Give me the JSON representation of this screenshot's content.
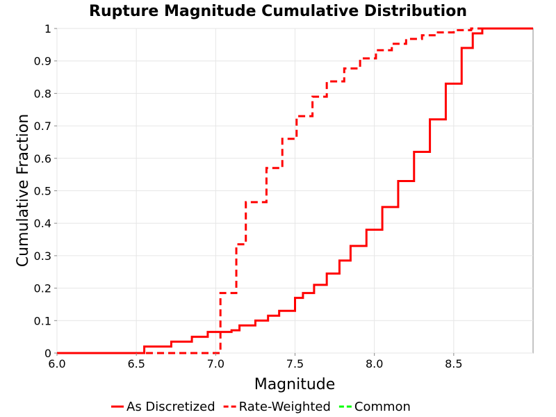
{
  "chart_data": {
    "type": "line",
    "title": "Rupture Magnitude Cumulative Distribution",
    "xlabel": "Magnitude",
    "ylabel": "Cumulative Fraction",
    "xlim": [
      6.0,
      9.0
    ],
    "ylim": [
      0,
      1
    ],
    "x_ticks": [
      "6.0",
      "6.5",
      "7.0",
      "7.5",
      "8.0",
      "8.5"
    ],
    "y_ticks": [
      "0",
      "0.1",
      "0.2",
      "0.3",
      "0.4",
      "0.5",
      "0.6",
      "0.7",
      "0.8",
      "0.9",
      "1"
    ],
    "grid": true,
    "legend_position": "bottom",
    "series": [
      {
        "name": "As Discretized",
        "color": "#ff0000",
        "style": "solid",
        "step": true,
        "x": [
          6.0,
          6.55,
          6.72,
          6.85,
          6.95,
          7.1,
          7.15,
          7.25,
          7.33,
          7.4,
          7.5,
          7.55,
          7.62,
          7.7,
          7.78,
          7.85,
          7.95,
          8.05,
          8.15,
          8.25,
          8.35,
          8.45,
          8.55,
          8.62,
          8.68,
          8.75,
          9.0
        ],
        "y": [
          0.0,
          0.02,
          0.035,
          0.05,
          0.065,
          0.07,
          0.085,
          0.1,
          0.115,
          0.13,
          0.17,
          0.185,
          0.21,
          0.245,
          0.285,
          0.33,
          0.38,
          0.45,
          0.53,
          0.62,
          0.72,
          0.83,
          0.94,
          0.985,
          1.0,
          1.0,
          1.0
        ]
      },
      {
        "name": "Rate-Weighted",
        "color": "#ff0000",
        "style": "dashed",
        "step": true,
        "x": [
          6.0,
          7.03,
          7.13,
          7.19,
          7.32,
          7.42,
          7.51,
          7.61,
          7.7,
          7.81,
          7.91,
          8.01,
          8.11,
          8.2,
          8.3,
          8.4,
          8.5,
          8.61,
          9.0
        ],
        "y": [
          0.0,
          0.185,
          0.335,
          0.465,
          0.57,
          0.66,
          0.73,
          0.79,
          0.837,
          0.877,
          0.908,
          0.933,
          0.953,
          0.968,
          0.979,
          0.988,
          0.995,
          1.0,
          1.0
        ]
      },
      {
        "name": "Common",
        "color": "#00ff00",
        "style": "dashed",
        "step": true,
        "x": [],
        "y": []
      }
    ]
  }
}
